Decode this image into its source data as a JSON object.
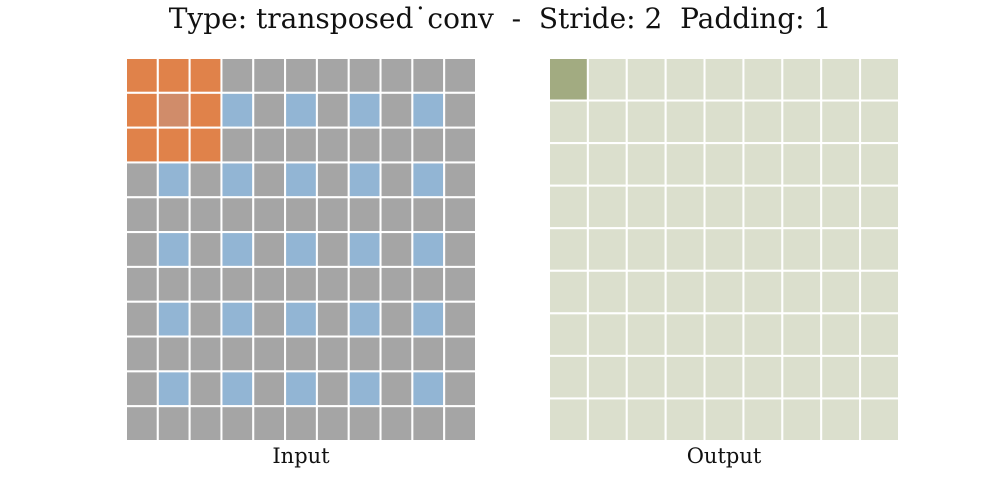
{
  "title": "Type: transposed˙conv  -  Stride: 2  Padding: 1",
  "input": {
    "label": "Input",
    "rows": 11,
    "cols": 11,
    "kernel_window": {
      "row_start": 0,
      "col_start": 0,
      "size": 3
    },
    "kernel_center": {
      "row": 1,
      "col": 1
    },
    "data_cells": [
      [
        1,
        3
      ],
      [
        1,
        5
      ],
      [
        1,
        7
      ],
      [
        1,
        9
      ],
      [
        3,
        1
      ],
      [
        3,
        3
      ],
      [
        3,
        5
      ],
      [
        3,
        7
      ],
      [
        3,
        9
      ],
      [
        5,
        1
      ],
      [
        5,
        3
      ],
      [
        5,
        5
      ],
      [
        5,
        7
      ],
      [
        5,
        9
      ],
      [
        7,
        1
      ],
      [
        7,
        3
      ],
      [
        7,
        5
      ],
      [
        7,
        7
      ],
      [
        7,
        9
      ],
      [
        9,
        1
      ],
      [
        9,
        3
      ],
      [
        9,
        5
      ],
      [
        9,
        7
      ],
      [
        9,
        9
      ]
    ]
  },
  "output": {
    "label": "Output",
    "rows": 9,
    "cols": 9,
    "active_cell": {
      "row": 0,
      "col": 0
    }
  },
  "colors": {
    "padding": "#a5a5a5",
    "data": "#92b5d4",
    "kernel": "#e0824a",
    "kernel_center": "#d08c6a",
    "output": "#dbdfcd",
    "output_active": "#a2ab81",
    "gridline": "#ffffff"
  }
}
